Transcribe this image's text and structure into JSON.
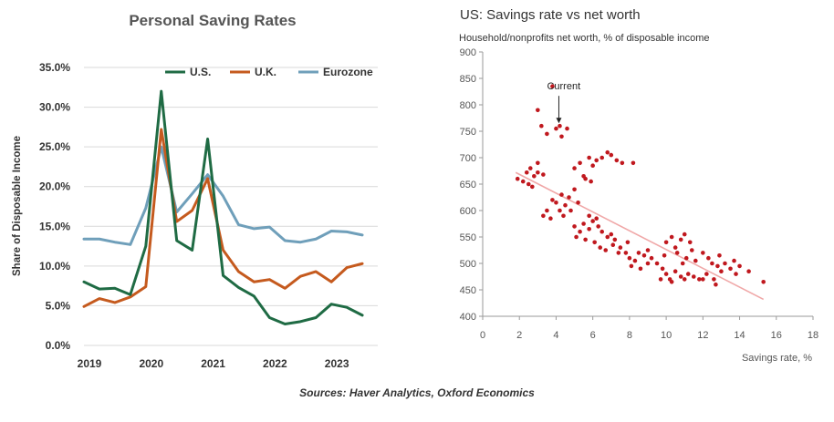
{
  "chart_data": [
    {
      "type": "line",
      "title": "Personal Saving Rates",
      "xlabel": "",
      "ylabel": "Share of Disposable Income",
      "ylim": [
        0,
        35
      ],
      "y_ticks": [
        "0.0%",
        "5.0%",
        "10.0%",
        "15.0%",
        "20.0%",
        "25.0%",
        "30.0%",
        "35.0%"
      ],
      "x_ticks": [
        "2019",
        "2020",
        "2021",
        "2022",
        "2023"
      ],
      "x_tick_values": [
        2019,
        2020,
        2021,
        2022,
        2023
      ],
      "xlim": [
        2019,
        2023.75
      ],
      "grid": "horizontal",
      "legend_position": "top",
      "x": [
        2019.0,
        2019.25,
        2019.5,
        2019.75,
        2020.0,
        2020.25,
        2020.5,
        2020.75,
        2021.0,
        2021.25,
        2021.5,
        2021.75,
        2022.0,
        2022.25,
        2022.5,
        2022.75,
        2023.0,
        2023.25,
        2023.5
      ],
      "series": [
        {
          "name": "U.S.",
          "color": "#1f6b44",
          "values": [
            8.0,
            7.1,
            7.2,
            6.4,
            12.5,
            32.0,
            13.2,
            12.0,
            26.0,
            8.8,
            7.3,
            6.2,
            3.5,
            2.7,
            3.0,
            3.5,
            5.2,
            4.8,
            3.8
          ]
        },
        {
          "name": "U.K.",
          "color": "#c55a1e",
          "values": [
            4.9,
            5.9,
            5.4,
            6.1,
            7.4,
            27.2,
            15.6,
            17.0,
            21.0,
            12.0,
            9.3,
            8.0,
            8.3,
            7.2,
            8.7,
            9.3,
            8.0,
            9.8,
            10.3
          ]
        },
        {
          "name": "Eurozone",
          "color": "#6f9fba",
          "values": [
            13.4,
            13.4,
            13.0,
            12.7,
            17.3,
            25.0,
            16.8,
            19.1,
            21.5,
            18.8,
            15.2,
            14.7,
            14.9,
            13.2,
            13.0,
            13.4,
            14.4,
            14.3,
            13.9
          ]
        }
      ]
    },
    {
      "type": "scatter",
      "title": "US: Savings rate vs net worth",
      "subtitle": "Household/nonprofits net worth, % of disposable income",
      "xlabel": "Savings rate, %",
      "ylabel": "",
      "xlim": [
        0,
        18
      ],
      "ylim": [
        400,
        900
      ],
      "x_ticks": [
        "0",
        "2",
        "4",
        "6",
        "8",
        "10",
        "12",
        "14",
        "16",
        "18"
      ],
      "x_tick_values": [
        0,
        2,
        4,
        6,
        8,
        10,
        12,
        14,
        16,
        18
      ],
      "y_ticks": [
        "400",
        "450",
        "500",
        "550",
        "600",
        "650",
        "700",
        "750",
        "800",
        "850",
        "900"
      ],
      "y_tick_values": [
        400,
        450,
        500,
        550,
        600,
        650,
        700,
        750,
        800,
        850,
        900
      ],
      "annotation": {
        "text": "Current",
        "x": 4.2,
        "y": 760
      },
      "trendline": {
        "x": [
          1.8,
          15.3
        ],
        "y": [
          672,
          432
        ],
        "color": "#f0a8a8"
      },
      "point_color": "#c0181e",
      "points": [
        [
          1.9,
          660
        ],
        [
          2.2,
          655
        ],
        [
          2.4,
          672
        ],
        [
          2.6,
          680
        ],
        [
          2.8,
          665
        ],
        [
          3.0,
          672
        ],
        [
          3.3,
          668
        ],
        [
          2.5,
          650
        ],
        [
          2.7,
          645
        ],
        [
          3.0,
          690
        ],
        [
          3.0,
          790
        ],
        [
          3.2,
          760
        ],
        [
          3.5,
          745
        ],
        [
          3.8,
          835
        ],
        [
          4.0,
          755
        ],
        [
          4.3,
          740
        ],
        [
          4.6,
          755
        ],
        [
          4.2,
          760
        ],
        [
          3.5,
          600
        ],
        [
          3.8,
          620
        ],
        [
          4.0,
          615
        ],
        [
          4.3,
          630
        ],
        [
          4.5,
          610
        ],
        [
          4.7,
          625
        ],
        [
          5.0,
          640
        ],
        [
          4.2,
          600
        ],
        [
          4.4,
          590
        ],
        [
          4.8,
          600
        ],
        [
          5.2,
          615
        ],
        [
          3.3,
          590
        ],
        [
          3.7,
          585
        ],
        [
          5.0,
          680
        ],
        [
          5.3,
          690
        ],
        [
          5.5,
          665
        ],
        [
          5.8,
          700
        ],
        [
          6.0,
          685
        ],
        [
          6.2,
          695
        ],
        [
          6.5,
          700
        ],
        [
          6.8,
          710
        ],
        [
          7.0,
          705
        ],
        [
          7.3,
          695
        ],
        [
          7.6,
          690
        ],
        [
          8.2,
          690
        ],
        [
          5.6,
          660
        ],
        [
          5.9,
          655
        ],
        [
          5.0,
          570
        ],
        [
          5.3,
          560
        ],
        [
          5.5,
          575
        ],
        [
          5.8,
          565
        ],
        [
          6.0,
          580
        ],
        [
          6.3,
          570
        ],
        [
          6.5,
          560
        ],
        [
          6.8,
          550
        ],
        [
          7.0,
          555
        ],
        [
          7.2,
          545
        ],
        [
          5.1,
          550
        ],
        [
          5.6,
          545
        ],
        [
          6.1,
          540
        ],
        [
          6.4,
          530
        ],
        [
          6.7,
          525
        ],
        [
          7.1,
          535
        ],
        [
          7.4,
          520
        ],
        [
          6.2,
          585
        ],
        [
          5.8,
          590
        ],
        [
          7.5,
          530
        ],
        [
          7.8,
          520
        ],
        [
          8.0,
          510
        ],
        [
          8.3,
          505
        ],
        [
          8.5,
          520
        ],
        [
          8.8,
          515
        ],
        [
          9.0,
          500
        ],
        [
          8.1,
          495
        ],
        [
          8.6,
          490
        ],
        [
          9.2,
          510
        ],
        [
          7.9,
          540
        ],
        [
          9.0,
          525
        ],
        [
          9.5,
          500
        ],
        [
          9.8,
          490
        ],
        [
          10.0,
          480
        ],
        [
          10.2,
          470
        ],
        [
          10.5,
          485
        ],
        [
          10.8,
          475
        ],
        [
          11.0,
          470
        ],
        [
          11.2,
          480
        ],
        [
          11.5,
          475
        ],
        [
          11.8,
          470
        ],
        [
          9.7,
          470
        ],
        [
          10.3,
          465
        ],
        [
          10.0,
          540
        ],
        [
          10.3,
          550
        ],
        [
          10.5,
          530
        ],
        [
          10.8,
          545
        ],
        [
          11.0,
          555
        ],
        [
          11.3,
          540
        ],
        [
          10.6,
          520
        ],
        [
          11.1,
          510
        ],
        [
          11.4,
          525
        ],
        [
          9.9,
          515
        ],
        [
          10.9,
          500
        ],
        [
          11.6,
          505
        ],
        [
          12.0,
          520
        ],
        [
          12.3,
          510
        ],
        [
          12.5,
          500
        ],
        [
          12.8,
          495
        ],
        [
          13.0,
          485
        ],
        [
          12.2,
          480
        ],
        [
          12.6,
          470
        ],
        [
          13.2,
          500
        ],
        [
          13.5,
          490
        ],
        [
          13.8,
          480
        ],
        [
          14.0,
          495
        ],
        [
          14.5,
          485
        ],
        [
          15.3,
          465
        ],
        [
          13.7,
          505
        ],
        [
          12.9,
          515
        ],
        [
          12.0,
          470
        ],
        [
          12.7,
          460
        ]
      ]
    }
  ],
  "source": "Sources: Haver Analytics, Oxford Economics"
}
